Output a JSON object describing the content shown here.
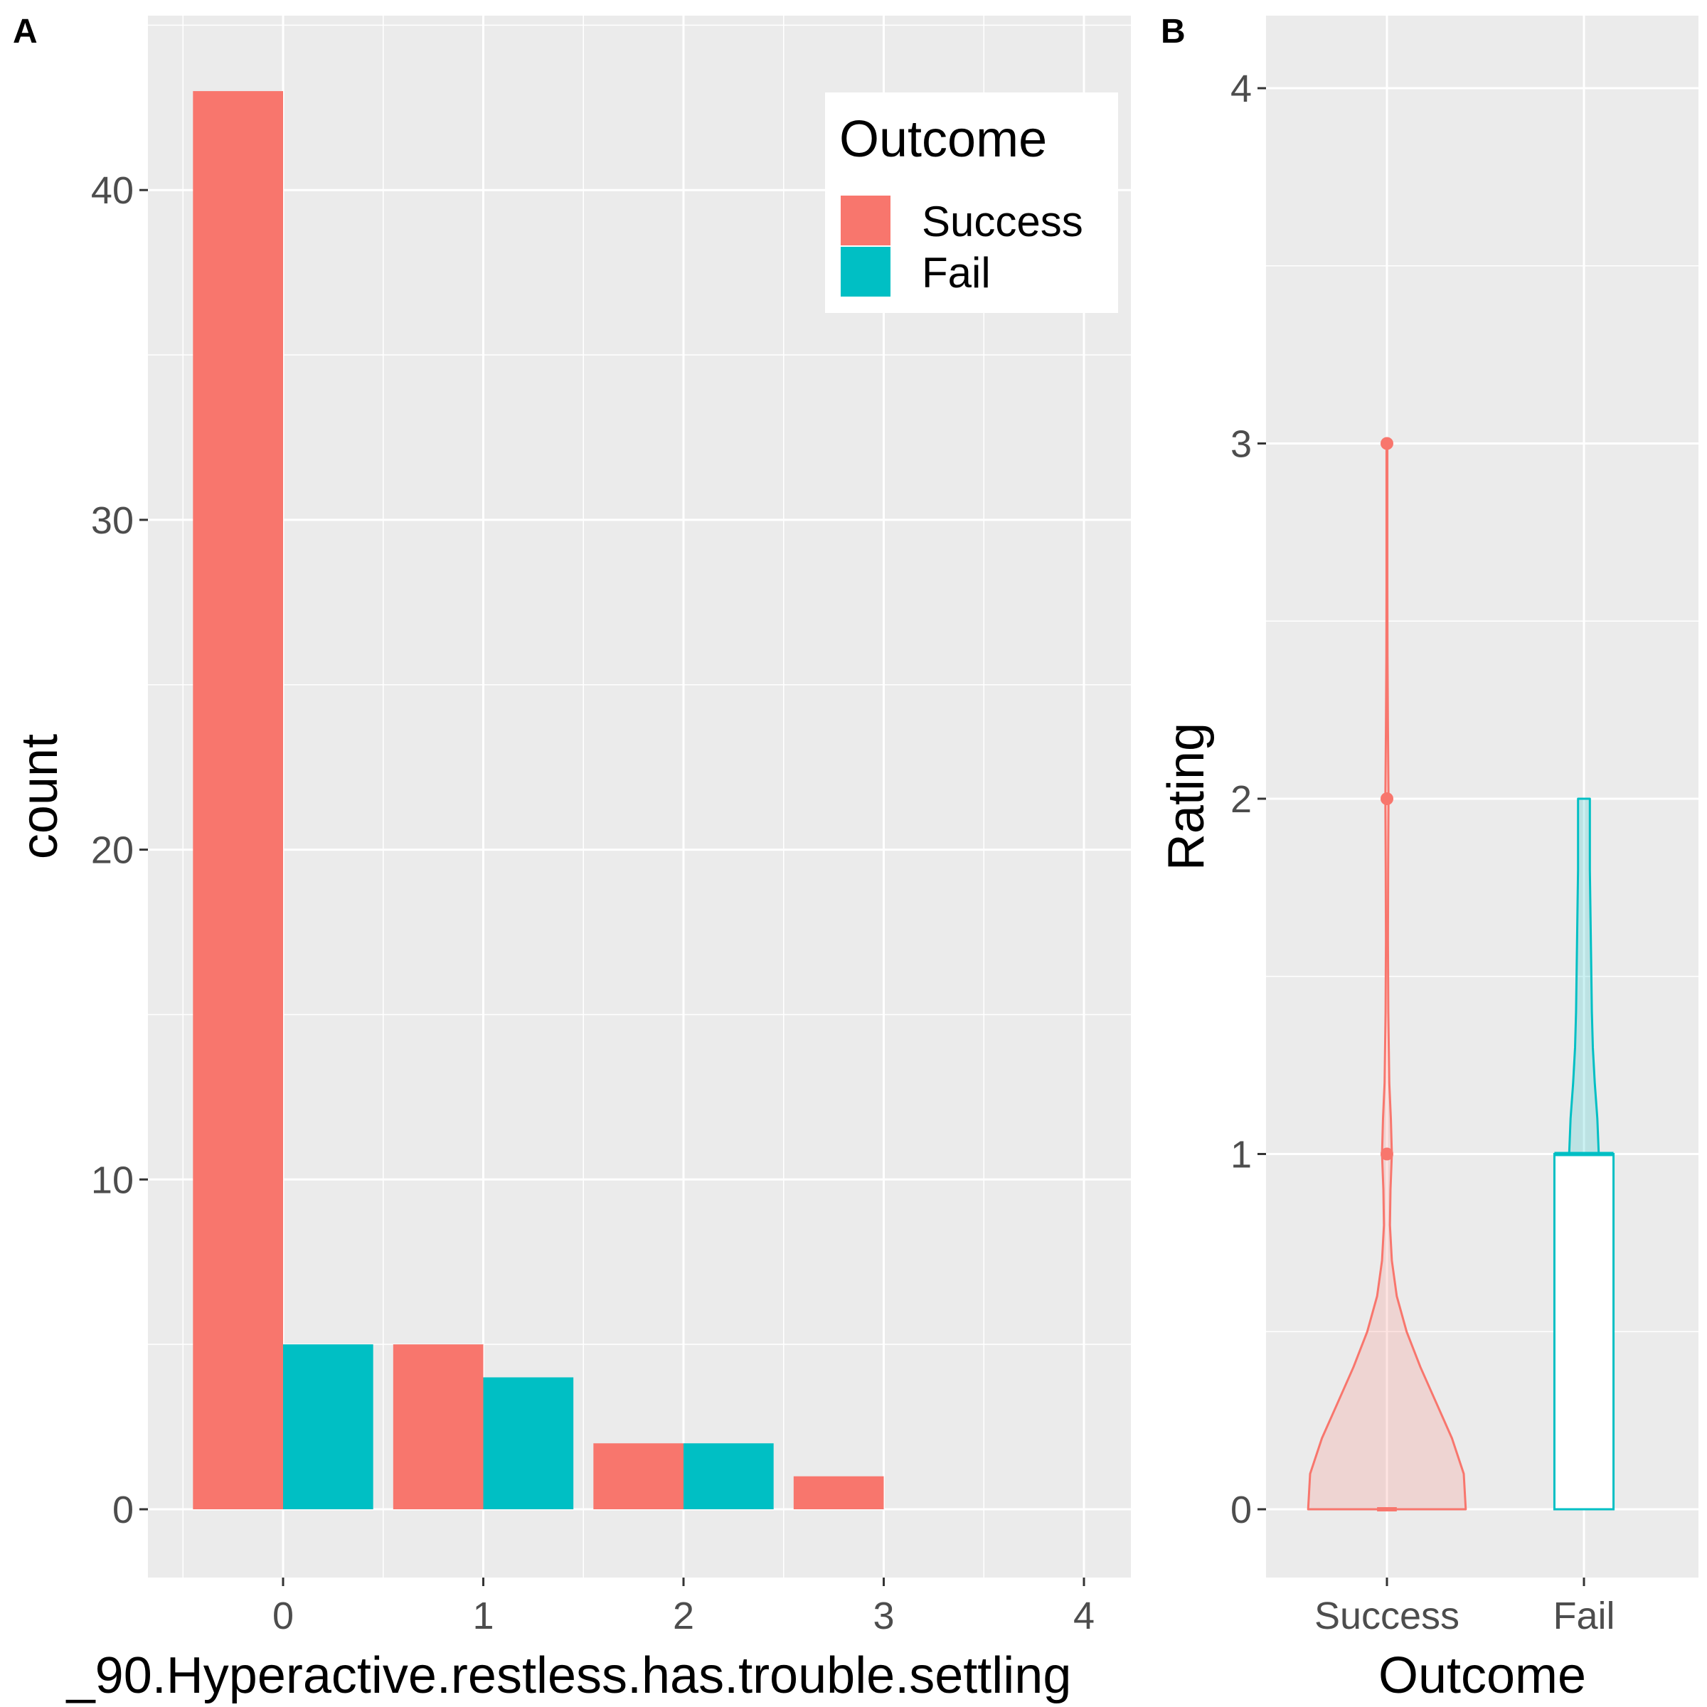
{
  "figure": {
    "panel_a_tag": "A",
    "panel_b_tag": "B"
  },
  "chart_data": [
    {
      "type": "bar",
      "panel": "A",
      "title": "",
      "xlabel": "_90.Hyperactive.restless.has.trouble.settling",
      "ylabel": "count",
      "categories": [
        0,
        1,
        2,
        3
      ],
      "x_ticks": [
        "0",
        "1",
        "2",
        "3",
        "4"
      ],
      "y_ticks": [
        "0",
        "10",
        "20",
        "30",
        "40"
      ],
      "xlim": [
        -0.5,
        4.2
      ],
      "ylim": [
        -2,
        45
      ],
      "grid": true,
      "position": "dodge",
      "series": [
        {
          "name": "Success",
          "color": "#F8766D",
          "values": [
            43,
            5,
            2,
            1
          ]
        },
        {
          "name": "Fail",
          "color": "#00BFC4",
          "values": [
            5,
            4,
            2,
            0
          ]
        }
      ],
      "legend": {
        "title": "Outcome",
        "placement": "top-right",
        "entries": [
          "Success",
          "Fail"
        ]
      }
    },
    {
      "type": "violin",
      "panel": "B",
      "title": "",
      "xlabel": "Outcome",
      "ylabel": "Rating",
      "categories": [
        "Success",
        "Fail"
      ],
      "y_ticks": [
        "0",
        "1",
        "2",
        "3",
        "4"
      ],
      "ylim": [
        -0.2,
        4.2
      ],
      "grid": true,
      "series": [
        {
          "name": "Success",
          "color": "#F8766D",
          "fill": "#F8766D",
          "max_half_width": 0.4,
          "density": [
            [
              0,
              0.4
            ],
            [
              0.1,
              0.39
            ],
            [
              0.2,
              0.33
            ],
            [
              0.3,
              0.25
            ],
            [
              0.4,
              0.17
            ],
            [
              0.5,
              0.1
            ],
            [
              0.6,
              0.05
            ],
            [
              0.7,
              0.025
            ],
            [
              0.8,
              0.015
            ],
            [
              0.9,
              0.018
            ],
            [
              1.0,
              0.025
            ],
            [
              1.1,
              0.02
            ],
            [
              1.2,
              0.012
            ],
            [
              1.4,
              0.007
            ],
            [
              1.6,
              0.005
            ],
            [
              1.8,
              0.006
            ],
            [
              2.0,
              0.008
            ],
            [
              2.2,
              0.005
            ],
            [
              2.4,
              0.003
            ],
            [
              2.6,
              0.002
            ],
            [
              2.8,
              0.002
            ],
            [
              3.0,
              0.002
            ]
          ],
          "box": {
            "q1": 0,
            "median": 0,
            "q3": 0
          },
          "outliers": [
            1,
            2,
            3
          ]
        },
        {
          "name": "Fail",
          "color": "#00BFC4",
          "fill": "#00BFC4",
          "max_half_width": 0.075,
          "density": [
            [
              1.0,
              0.075
            ],
            [
              1.1,
              0.068
            ],
            [
              1.2,
              0.055
            ],
            [
              1.3,
              0.045
            ],
            [
              1.4,
              0.04
            ],
            [
              1.6,
              0.035
            ],
            [
              1.8,
              0.03
            ],
            [
              2.0,
              0.03
            ]
          ],
          "box": {
            "q1": 0,
            "median": 1,
            "q3": 1
          },
          "box_half_width": 0.15,
          "outliers": []
        }
      ]
    }
  ]
}
